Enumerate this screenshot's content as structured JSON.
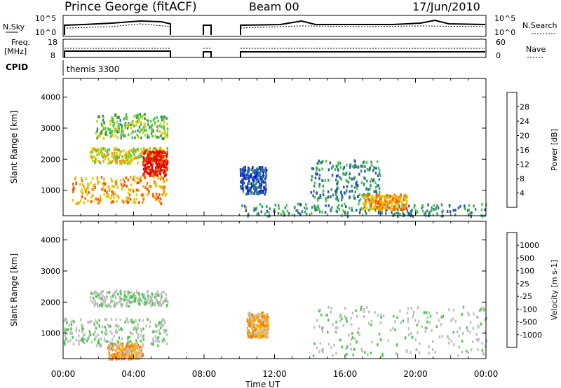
{
  "header": {
    "station": "Prince George (fitACF)",
    "beam": "Beam 00",
    "date": "17/Jun/2010"
  },
  "top_panels": {
    "nsky_label": "N.Sky",
    "nsky_ticks": [
      "10^5",
      "10^0"
    ],
    "nsearch_label": "N.Search",
    "nsearch_ticks": [
      "10^5",
      "10^0"
    ],
    "freq_label_1": "Freq.",
    "freq_label_2": "[MHz]",
    "freq_ticks": [
      "18",
      "8"
    ],
    "nave_label": "Nave",
    "nave_ticks": [
      "60",
      "0"
    ],
    "cpid_label": "CPID",
    "cpid_value": "themis 3300"
  },
  "chart_data": [
    {
      "type": "heatmap",
      "name": "power",
      "xlabel": "Time UT",
      "ylabel": "Slant Range [km]",
      "x_range_hours": [
        0,
        24
      ],
      "ylim": [
        180,
        4600
      ],
      "yticks": [
        "4000",
        "3000",
        "2000",
        "1000"
      ],
      "xticks": [
        "00:00",
        "04:00",
        "08:00",
        "12:00",
        "16:00",
        "20:00",
        "00:00"
      ],
      "colorbar": {
        "label": "Power [dB]",
        "ticks": [
          "28",
          "24",
          "20",
          "16",
          "12",
          "8",
          "4"
        ],
        "colors": [
          "#e00000",
          "#ff5000",
          "#ff9a00",
          "#d8d000",
          "#48c848",
          "#2f8f6b",
          "#2a4fb3",
          "#1010ff"
        ]
      },
      "data_gaps_hours": [
        [
          6.0,
          7.8
        ],
        [
          8.4,
          10.0
        ]
      ],
      "regions": [
        {
          "t": [
            0.5,
            5.9
          ],
          "r": [
            600,
            1500
          ],
          "level": 5
        },
        {
          "t": [
            1.5,
            5.9
          ],
          "r": [
            1900,
            2400
          ],
          "level": 4
        },
        {
          "t": [
            4.5,
            5.9
          ],
          "r": [
            1500,
            2300
          ],
          "level": 7
        },
        {
          "t": [
            1.8,
            5.9
          ],
          "r": [
            2700,
            3500
          ],
          "level": 3
        },
        {
          "t": [
            10.0,
            11.5
          ],
          "r": [
            900,
            1800
          ],
          "level": 1
        },
        {
          "t": [
            10.0,
            24.0
          ],
          "r": [
            200,
            600
          ],
          "level": 2
        },
        {
          "t": [
            14.0,
            18.0
          ],
          "r": [
            700,
            2000
          ],
          "level": 2
        },
        {
          "t": [
            17.0,
            19.5
          ],
          "r": [
            400,
            900
          ],
          "level": 5
        }
      ]
    },
    {
      "type": "heatmap",
      "name": "velocity",
      "xlabel": "Time UT",
      "ylabel": "Slant Range [km]",
      "x_range_hours": [
        0,
        24
      ],
      "ylim": [
        180,
        4600
      ],
      "yticks": [
        "4000",
        "3000",
        "2000",
        "1000"
      ],
      "xticks": [
        "00:00",
        "04:00",
        "08:00",
        "12:00",
        "16:00",
        "20:00",
        "00:00"
      ],
      "colorbar": {
        "label": "Velocity [m s-1]",
        "ticks": [
          "1000",
          "500",
          "100",
          "25",
          "-25",
          "-100",
          "-500",
          "-1000"
        ],
        "colors": [
          "#2a3fb3",
          "#3f6fd0",
          "#2f8f6b",
          "#48c848",
          "#bebebe",
          "#bebebe",
          "#ffb000",
          "#ff7800",
          "#e00000"
        ]
      },
      "data_gaps_hours": [
        [
          6.0,
          7.8
        ],
        [
          8.4,
          10.0
        ]
      ],
      "regions": [
        {
          "t": [
            0.0,
            5.9
          ],
          "r": [
            600,
            1500
          ],
          "level": 4
        },
        {
          "t": [
            1.5,
            5.9
          ],
          "r": [
            1900,
            2400
          ],
          "level": 4
        },
        {
          "t": [
            10.4,
            11.6
          ],
          "r": [
            900,
            1700
          ],
          "level": 6
        },
        {
          "t": [
            14.0,
            24.0
          ],
          "r": [
            300,
            1900
          ],
          "level": 4
        },
        {
          "t": [
            2.5,
            4.5
          ],
          "r": [
            200,
            700
          ],
          "level": 6
        }
      ]
    }
  ]
}
